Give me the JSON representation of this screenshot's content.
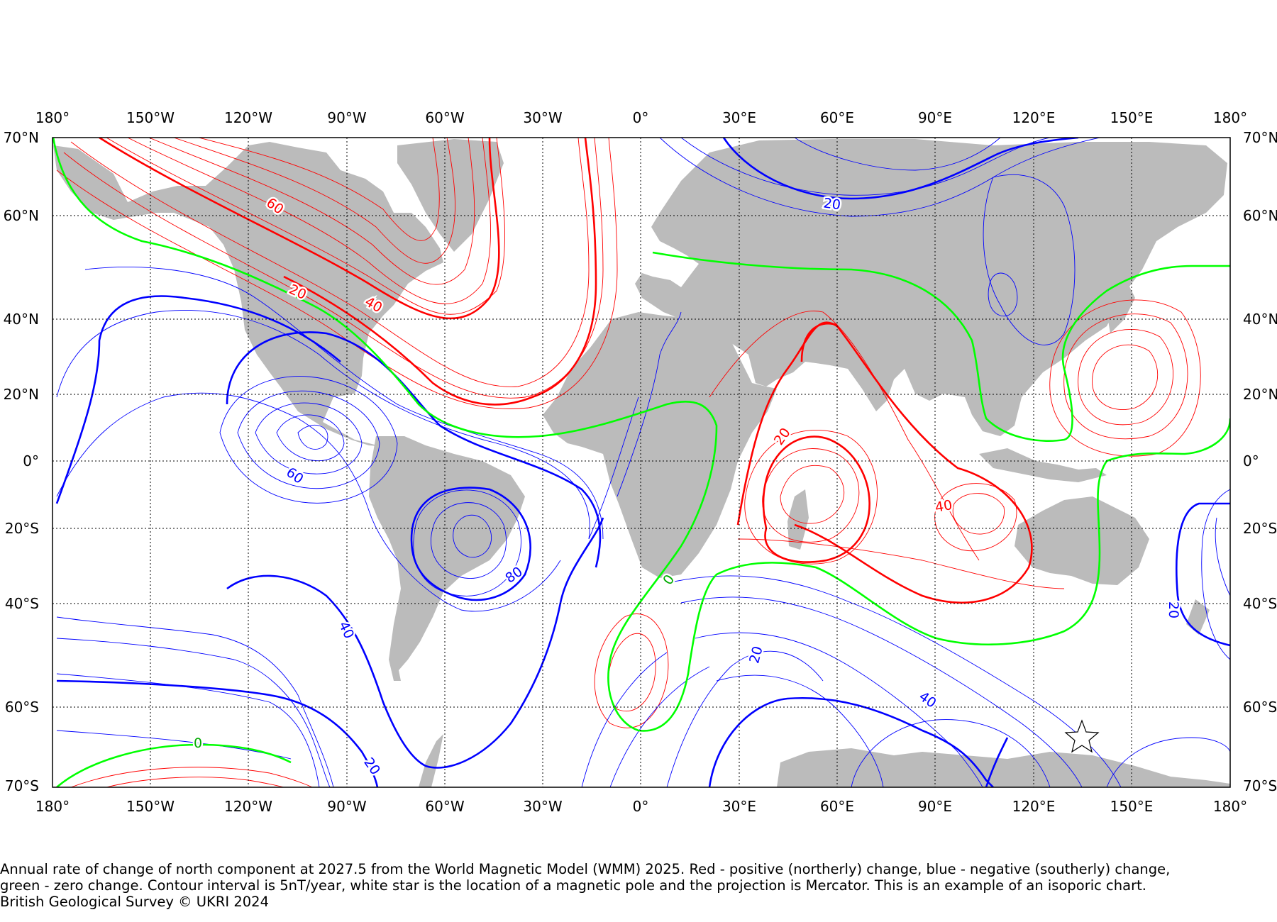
{
  "map": {
    "projection": "Mercator",
    "lon_range": [
      -180,
      180
    ],
    "lat_range": [
      -70,
      70
    ],
    "lon_labels": [
      "180°",
      "150°W",
      "120°W",
      "90°W",
      "60°W",
      "30°W",
      "0°",
      "30°E",
      "60°E",
      "90°E",
      "120°E",
      "150°E",
      "180°"
    ],
    "lat_labels": [
      "70°N",
      "60°N",
      "40°N",
      "20°N",
      "0°",
      "20°S",
      "40°S",
      "60°S",
      "70°S"
    ],
    "colors": {
      "positive": "#ff0000",
      "negative": "#0000ff",
      "zero": "#00ff00",
      "land": "#bbbbbb",
      "grid": "#000000"
    },
    "contour_interval": "5nT/year",
    "contour_labels": [
      {
        "text": "60",
        "color": "positive"
      },
      {
        "text": "20",
        "color": "positive"
      },
      {
        "text": "40",
        "color": "positive"
      },
      {
        "text": "20",
        "color": "positive"
      },
      {
        "text": "40",
        "color": "positive"
      },
      {
        "text": "20",
        "color": "negative"
      },
      {
        "text": "60",
        "color": "negative"
      },
      {
        "text": "80",
        "color": "negative"
      },
      {
        "text": "40",
        "color": "negative"
      },
      {
        "text": "20",
        "color": "negative"
      },
      {
        "text": "20",
        "color": "negative"
      },
      {
        "text": "40",
        "color": "negative"
      },
      {
        "text": "20",
        "color": "negative"
      },
      {
        "text": "0",
        "color": "zero"
      },
      {
        "text": "0",
        "color": "zero"
      }
    ],
    "magnetic_pole": {
      "symbol": "white star",
      "lon": 135,
      "lat": -65
    }
  },
  "caption": {
    "line1": "Annual rate of change of north component at 2027.5 from the World Magnetic Model (WMM) 2025. Red - positive (northerly) change, blue - negative (southerly) change,",
    "line2": "green - zero change. Contour interval is 5nT/year, white star is the location of a magnetic pole and the projection is Mercator. This is an example of an isoporic chart.",
    "line3": "British Geological Survey © UKRI 2024"
  }
}
